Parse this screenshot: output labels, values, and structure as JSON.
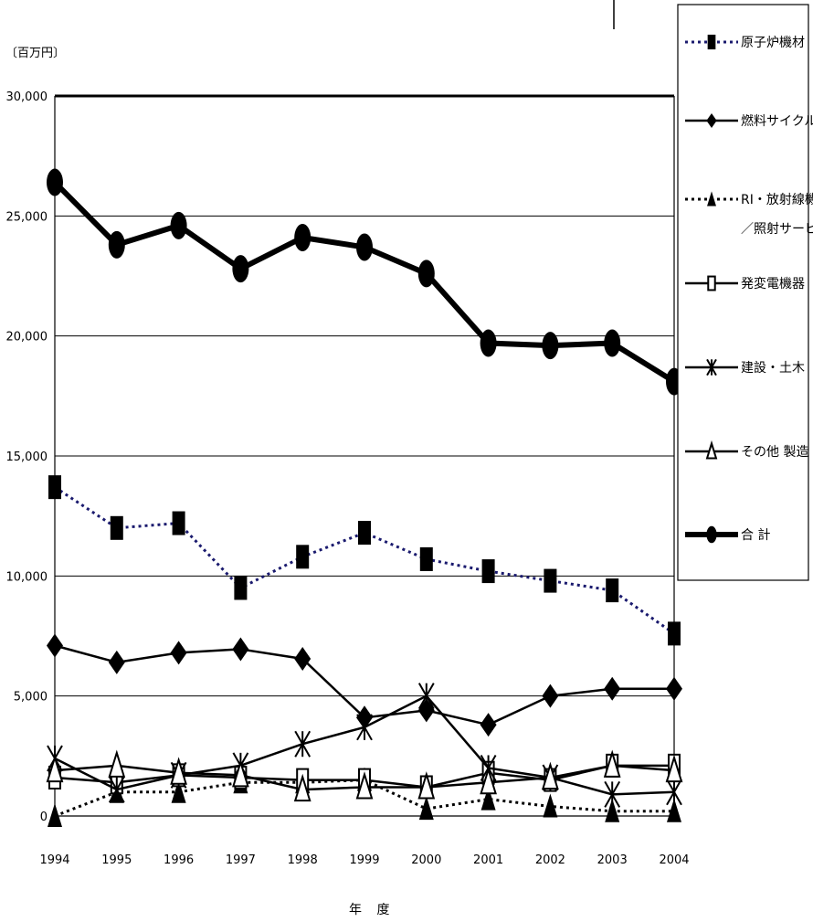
{
  "chart_data": {
    "type": "line",
    "ylabel": "〔百万円〕",
    "xlabel": "年 度",
    "ylim": [
      0,
      30000
    ],
    "y_ticks": [
      "0",
      "5,000",
      "10,000",
      "15,000",
      "20,000",
      "25,000",
      "30,000"
    ],
    "categories": [
      "1994",
      "1995",
      "1996",
      "1997",
      "1998",
      "1999",
      "2000",
      "2001",
      "2002",
      "2003",
      "2004"
    ],
    "grid": true,
    "legend_position": "right",
    "series": [
      {
        "name": "原子炉機材",
        "label_lines": [
          "原子炉機材"
        ],
        "line_style": "dotted",
        "color": "#1a1a6e",
        "marker": "square",
        "values": [
          13700,
          12000,
          12200,
          9500,
          10800,
          11800,
          10700,
          10200,
          9800,
          9400,
          7600
        ]
      },
      {
        "name": "燃料サイクル",
        "label_lines": [
          "燃料サイクル"
        ],
        "line_style": "solid",
        "color": "#000000",
        "marker": "diamond",
        "values": [
          7100,
          6400,
          6800,
          6950,
          6550,
          4100,
          4400,
          3800,
          5000,
          5300,
          5300
        ]
      },
      {
        "name": "RI・放射線機器／照射サービス",
        "label_lines": [
          "RI・放射線機器",
          "／照射サービス"
        ],
        "line_style": "dotted",
        "color": "#000000",
        "marker": "triangle-filled",
        "values": [
          0,
          1000,
          1000,
          1400,
          1400,
          1500,
          300,
          700,
          400,
          200,
          200
        ]
      },
      {
        "name": "発変電機器",
        "label_lines": [
          "発変電機器"
        ],
        "line_style": "solid",
        "color": "#000000",
        "marker": "square-open",
        "values": [
          1600,
          1400,
          1700,
          1600,
          1500,
          1500,
          1200,
          1800,
          1500,
          2100,
          2100
        ]
      },
      {
        "name": "建設・土木",
        "label_lines": [
          "建設・土木"
        ],
        "line_style": "solid",
        "color": "#000000",
        "marker": "asterisk",
        "values": [
          2400,
          1100,
          1700,
          2100,
          3000,
          3700,
          5000,
          2000,
          1600,
          900,
          1000
        ]
      },
      {
        "name": "その他 製造",
        "label_lines": [
          "その他 製造"
        ],
        "line_style": "solid",
        "color": "#000000",
        "marker": "triangle-open",
        "values": [
          1900,
          2100,
          1800,
          1700,
          1100,
          1200,
          1200,
          1400,
          1600,
          2100,
          1900
        ]
      },
      {
        "name": "合 計",
        "label_lines": [
          "合 計"
        ],
        "line_style": "thick",
        "color": "#000000",
        "marker": "ellipse",
        "values": [
          26400,
          23800,
          24600,
          22800,
          24100,
          23700,
          22600,
          19700,
          19600,
          19700,
          18100
        ]
      }
    ]
  }
}
